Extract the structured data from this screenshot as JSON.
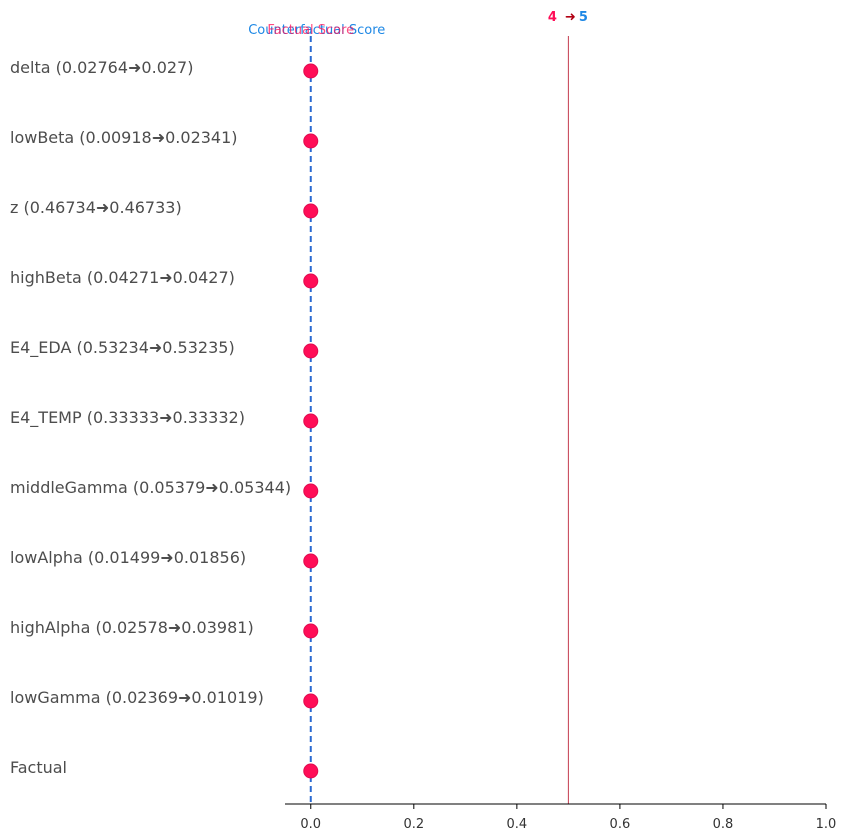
{
  "chart_data": {
    "type": "scatter",
    "title": "",
    "xlabel": "",
    "ylabel": "",
    "xlim": [
      -0.05,
      1.0
    ],
    "x_ticks": [
      "0.0",
      "0.2",
      "0.4",
      "0.6",
      "0.8",
      "1.0"
    ],
    "x_tick_values": [
      0.0,
      0.2,
      0.4,
      0.6,
      0.8,
      1.0
    ],
    "rows": [
      {
        "label": "delta (0.02764➜0.027)",
        "value": 0.0
      },
      {
        "label": "lowBeta (0.00918➜0.02341)",
        "value": 0.0
      },
      {
        "label": "z (0.46734➜0.46733)",
        "value": 0.0
      },
      {
        "label": "highBeta (0.04271➜0.0427)",
        "value": 0.0
      },
      {
        "label": "E4_EDA (0.53234➜0.53235)",
        "value": 0.0
      },
      {
        "label": "E4_TEMP (0.33333➜0.33332)",
        "value": 0.0
      },
      {
        "label": "middleGamma (0.05379➜0.05344)",
        "value": 0.0
      },
      {
        "label": "lowAlpha (0.01499➜0.01856)",
        "value": 0.0
      },
      {
        "label": "highAlpha (0.02578➜0.03981)",
        "value": 0.0
      },
      {
        "label": "lowGamma (0.02369➜0.01019)",
        "value": 0.0
      },
      {
        "label": "Factual",
        "value": 0.0
      }
    ],
    "reference_lines": {
      "dashed_at": 0.0,
      "solid_at": 0.5
    },
    "annotations": {
      "counterfactual_score_label": "Counterfactual Score",
      "factual_score_label": "Factual Score",
      "class_from": "4",
      "class_arrow": "➜",
      "class_to": "5"
    },
    "colors": {
      "marker": "#ff0d57",
      "marker_stroke": "#e00a4e",
      "dashed_line": "#2a6ad1",
      "solid_line": "#c43a4e",
      "counterfactual_text": "#1e88e5",
      "factual_text": "#ff0d57",
      "class_from": "#ff0d57",
      "class_arrow": "#b20013",
      "class_to": "#1e88e5",
      "row_text": "#4d4d4d",
      "axis": "#000000"
    }
  }
}
